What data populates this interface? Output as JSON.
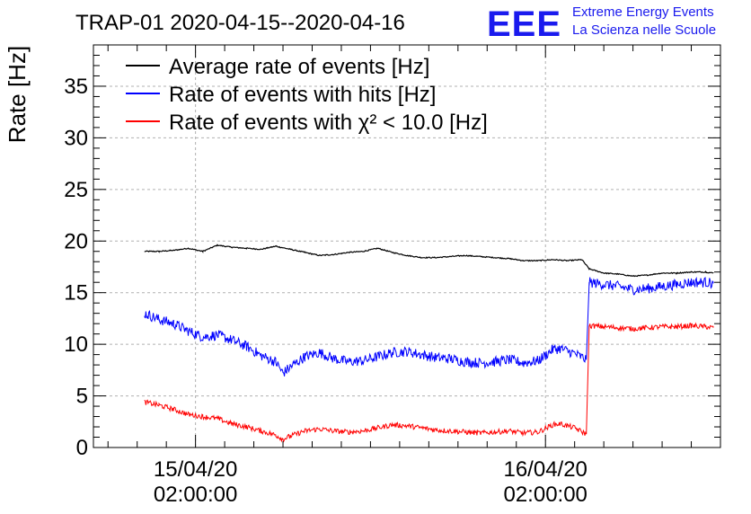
{
  "header": {
    "title": "TRAP-01 2020-04-15--2020-04-16",
    "logo_text": "EEE",
    "logo_line1": "Extreme Energy Events",
    "logo_line2": "La Scienza nelle Scuole"
  },
  "chart_data": {
    "type": "line",
    "title": "TRAP-01 2020-04-15--2020-04-16",
    "ylabel": "Rate [Hz]",
    "xlabel": "",
    "ylim": [
      0,
      39
    ],
    "xlim_hours": [
      -7,
      36
    ],
    "yticks": [
      0,
      5,
      10,
      15,
      20,
      25,
      30,
      35
    ],
    "xticks": [
      {
        "hour": 0,
        "line1": "15/04/20",
        "line2": "02:00:00"
      },
      {
        "hour": 24,
        "line1": "16/04/20",
        "line2": "02:00:00"
      }
    ],
    "grid": true,
    "legend_position": "top-left",
    "series": [
      {
        "name": "Average rate of events [Hz]",
        "color": "#000000",
        "noise": 0.05,
        "x": [
          -3.5,
          -2.5,
          -1.5,
          -0.5,
          0.5,
          1.5,
          2.5,
          3.5,
          4.5,
          5.5,
          6.5,
          7.5,
          8.5,
          9.5,
          10.5,
          11.5,
          12.5,
          13.5,
          14.5,
          15.5,
          16.5,
          17.5,
          18.5,
          19.5,
          20.5,
          21.5,
          22.5,
          23.5,
          24.5,
          25.5,
          26.5,
          27.0,
          28.0,
          29.0,
          30.0,
          31.0,
          32.0,
          33.0,
          34.0,
          35.0,
          35.5
        ],
        "y": [
          19.0,
          19.0,
          19.1,
          19.3,
          19.0,
          19.6,
          19.4,
          19.3,
          19.2,
          19.5,
          19.2,
          18.9,
          18.6,
          18.7,
          18.9,
          19.0,
          19.3,
          18.9,
          18.6,
          18.4,
          18.4,
          18.5,
          18.6,
          18.5,
          18.4,
          18.3,
          18.1,
          18.1,
          18.2,
          18.1,
          18.2,
          17.3,
          16.9,
          16.8,
          16.6,
          16.7,
          16.9,
          16.9,
          17.0,
          17.0,
          16.9
        ]
      },
      {
        "name": "Rate of events with hits [Hz]",
        "color": "#0000ff",
        "noise": 0.5,
        "x": [
          -3.5,
          -2.5,
          -1.5,
          -0.5,
          0.5,
          1.5,
          2.5,
          3.5,
          4.5,
          5.5,
          6.0,
          6.5,
          7.5,
          8.5,
          9.5,
          10.5,
          11.5,
          12.5,
          13.5,
          14.5,
          15.5,
          16.5,
          17.5,
          18.5,
          19.5,
          20.5,
          21.5,
          22.5,
          23.5,
          24.5,
          25.0,
          26.0,
          26.8,
          27.0,
          28.0,
          29.0,
          30.0,
          31.0,
          32.0,
          33.0,
          34.0,
          35.0,
          35.5
        ],
        "y": [
          13.0,
          12.4,
          12.0,
          11.3,
          10.7,
          10.9,
          10.4,
          9.8,
          8.9,
          8.3,
          7.2,
          7.8,
          8.8,
          9.2,
          8.6,
          8.3,
          8.4,
          8.8,
          9.2,
          9.3,
          9.0,
          8.7,
          8.6,
          8.3,
          8.2,
          8.3,
          8.5,
          8.2,
          8.4,
          9.5,
          9.6,
          9.1,
          8.5,
          16.0,
          15.8,
          15.6,
          15.3,
          15.4,
          15.6,
          15.8,
          16.0,
          16.0,
          15.9
        ]
      },
      {
        "name": "Rate of events with χ² < 10.0 [Hz]",
        "color": "#ff0000",
        "noise": 0.25,
        "x": [
          -3.5,
          -2.5,
          -1.5,
          -0.5,
          0.5,
          1.5,
          2.5,
          3.5,
          4.5,
          5.5,
          6.0,
          6.5,
          7.5,
          8.5,
          9.5,
          10.5,
          11.5,
          12.5,
          13.5,
          14.5,
          15.5,
          16.5,
          17.5,
          18.5,
          19.5,
          20.5,
          21.5,
          22.5,
          23.5,
          24.5,
          25.0,
          26.0,
          26.8,
          27.0,
          28.0,
          29.0,
          30.0,
          31.0,
          32.0,
          33.0,
          34.0,
          35.0,
          35.5
        ],
        "y": [
          4.4,
          4.1,
          3.7,
          3.2,
          3.0,
          2.8,
          2.3,
          2.0,
          1.6,
          1.2,
          0.8,
          1.1,
          1.6,
          1.8,
          1.6,
          1.5,
          1.6,
          1.9,
          2.2,
          2.1,
          1.9,
          1.7,
          1.6,
          1.5,
          1.4,
          1.5,
          1.6,
          1.4,
          1.5,
          2.2,
          2.3,
          1.9,
          1.3,
          11.8,
          11.7,
          11.6,
          11.5,
          11.6,
          11.7,
          11.7,
          11.8,
          11.7,
          11.6
        ]
      }
    ]
  }
}
